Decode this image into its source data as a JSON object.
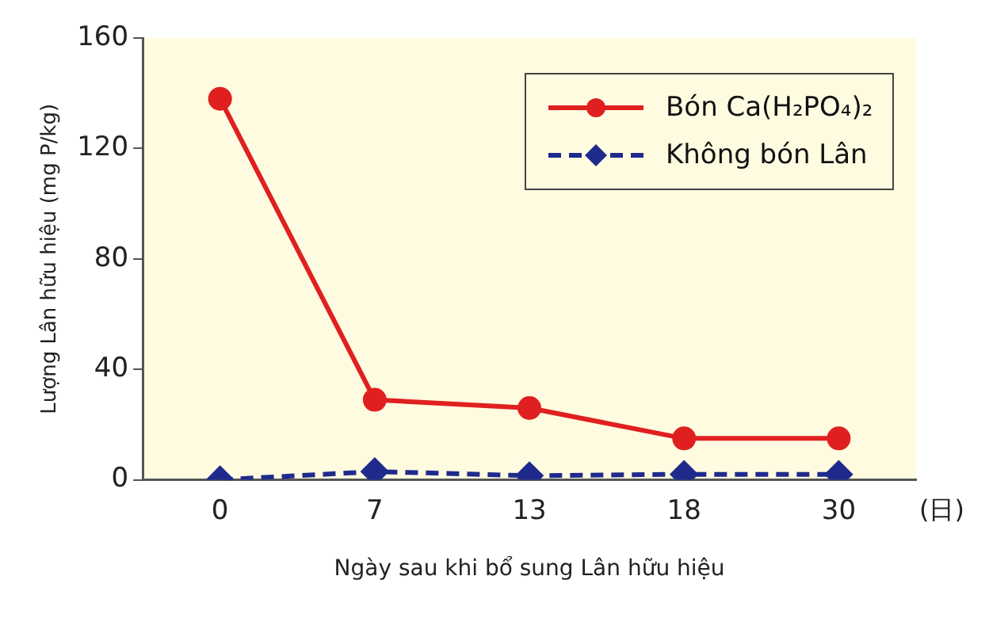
{
  "chart_data": {
    "type": "line",
    "xlabel": "Ngày sau khi bổ sung Lân hữu hiệu",
    "ylabel": "Lượng Lân hữu hiệu (mg P/kg)",
    "categories": [
      "0",
      "7",
      "13",
      "18",
      "30"
    ],
    "series": [
      {
        "name": "Bón Ca(H₂PO₄)₂",
        "color": "#e02020",
        "values": [
          138,
          29,
          26,
          15,
          15
        ],
        "marker": "circle",
        "line_style": "solid"
      },
      {
        "name": "Không bón Lân",
        "color": "#1f2a8c",
        "values": [
          0,
          3,
          1.5,
          2,
          2
        ],
        "marker": "diamond",
        "line_style": "dashed"
      }
    ],
    "ylim": [
      0,
      160
    ],
    "yticks": [
      0,
      40,
      80,
      120,
      160
    ],
    "grid": false,
    "legend": "top right",
    "annotations": [
      "(日)"
    ]
  }
}
